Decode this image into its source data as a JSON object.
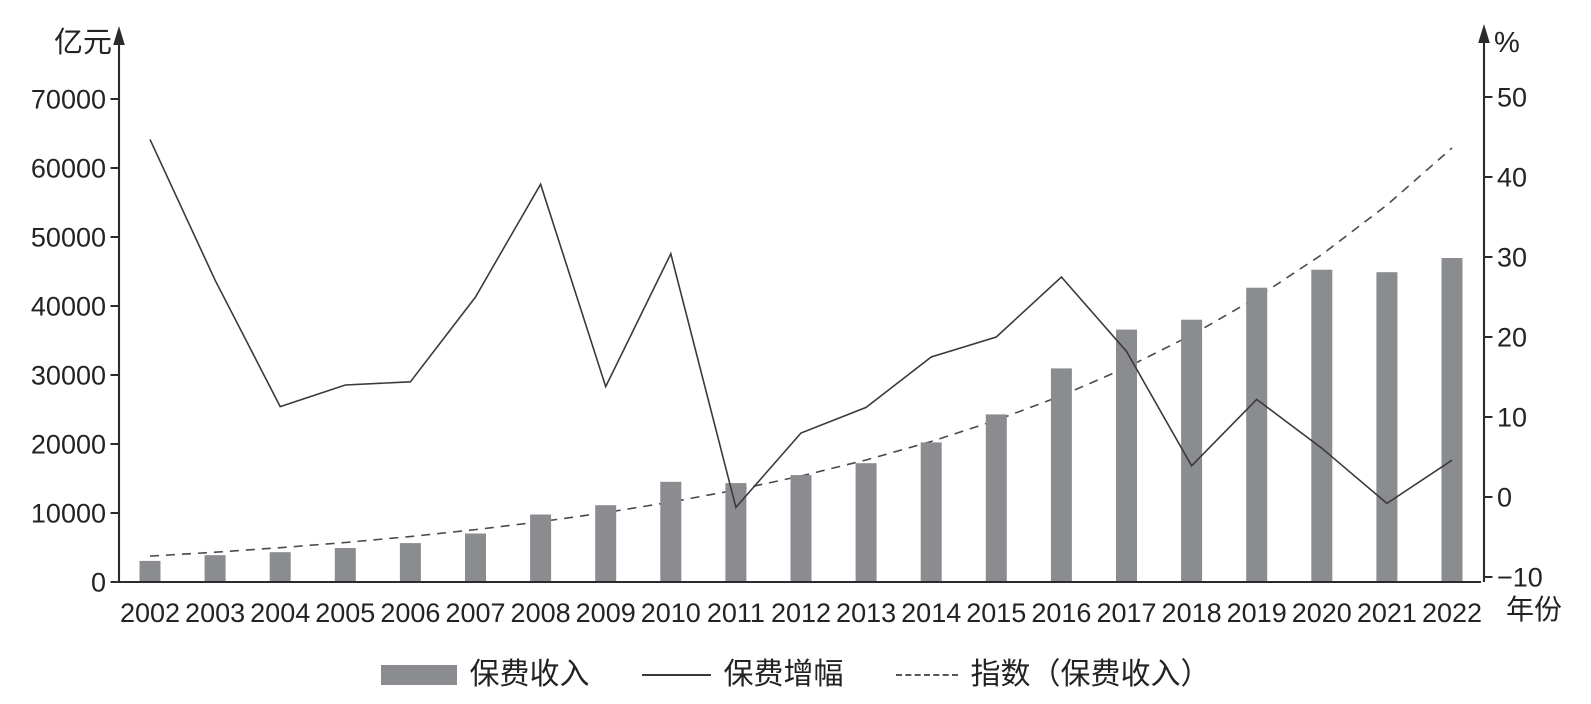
{
  "chart_data": {
    "type": "bar-line-combo",
    "title": "",
    "categories": [
      "2002",
      "2003",
      "2004",
      "2005",
      "2006",
      "2007",
      "2008",
      "2009",
      "2010",
      "2011",
      "2012",
      "2013",
      "2014",
      "2015",
      "2016",
      "2017",
      "2018",
      "2019",
      "2020",
      "2021",
      "2022"
    ],
    "series": [
      {
        "name": "保费收入",
        "type": "bar",
        "axis": "left",
        "unit": "亿元",
        "values": [
          3053,
          3880,
          4318,
          4927,
          5641,
          7036,
          9784,
          11137,
          14528,
          14339,
          15488,
          17222,
          20235,
          24283,
          30959,
          36581,
          38017,
          42645,
          45257,
          44900,
          46957
        ]
      },
      {
        "name": "保费增幅",
        "type": "line",
        "axis": "right",
        "unit": "%",
        "values": [
          44.7,
          27.1,
          11.3,
          14.0,
          14.4,
          25.0,
          39.1,
          13.8,
          30.4,
          -1.3,
          8.0,
          11.2,
          17.5,
          20.0,
          27.5,
          18.2,
          3.9,
          12.2,
          6.1,
          -0.8,
          4.6
        ]
      },
      {
        "name": "指数（保费收入）",
        "type": "line-dashed",
        "axis": "left",
        "unit": "亿元",
        "fit": "exponential-trendline",
        "values": [
          3750,
          4318,
          4972,
          5724,
          6591,
          7589,
          8738,
          10061,
          11585,
          13339,
          15358,
          17684,
          20361,
          23444,
          26994,
          31082,
          35788,
          41207,
          47446,
          54630,
          62902
        ]
      }
    ],
    "left_axis": {
      "label": "亿元",
      "min": 0,
      "max": 70000,
      "tick_step": 10000,
      "tick_values": [
        70000,
        60000,
        50000,
        40000,
        30000,
        20000,
        10000,
        0
      ],
      "tick_labels": [
        "70000",
        "60000",
        "50000",
        "40000",
        "30000",
        "20000",
        "10000",
        "0"
      ]
    },
    "right_axis": {
      "label": "%",
      "min": -10,
      "max": 50,
      "tick_step": 10,
      "tick_values": [
        50,
        40,
        30,
        20,
        10,
        0,
        -10
      ],
      "tick_labels": [
        "50",
        "40",
        "30",
        "20",
        "10",
        "0",
        "−10"
      ]
    },
    "x_axis": {
      "label": "年份"
    },
    "grid": false,
    "legend_position": "bottom-center",
    "colors": {
      "bar": "#8a8c8f",
      "growth_line": "#3a3a3c",
      "trend_line": "#4a4a4e",
      "axis": "#2b2b2d",
      "text": "#232325"
    }
  },
  "legend": {
    "items": [
      {
        "label": "保费收入",
        "swatch": "bar"
      },
      {
        "label": "保费增幅",
        "swatch": "solid-line"
      },
      {
        "label": "指数（保费收入）",
        "swatch": "dashed-line"
      }
    ]
  }
}
